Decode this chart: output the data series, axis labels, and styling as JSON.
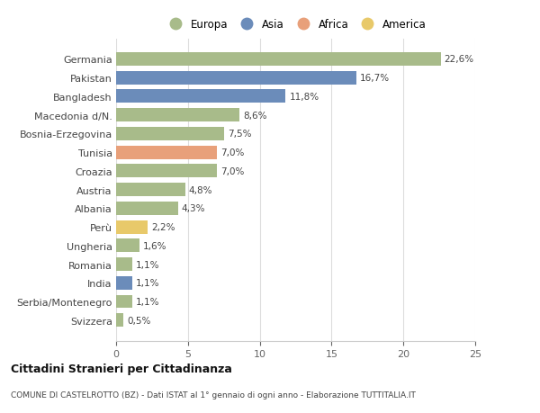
{
  "countries": [
    "Germania",
    "Pakistan",
    "Bangladesh",
    "Macedonia d/N.",
    "Bosnia-Erzegovina",
    "Tunisia",
    "Croazia",
    "Austria",
    "Albania",
    "Perù",
    "Ungheria",
    "Romania",
    "India",
    "Serbia/Montenegro",
    "Svizzera"
  ],
  "values": [
    22.6,
    16.7,
    11.8,
    8.6,
    7.5,
    7.0,
    7.0,
    4.8,
    4.3,
    2.2,
    1.6,
    1.1,
    1.1,
    1.1,
    0.5
  ],
  "labels": [
    "22,6%",
    "16,7%",
    "11,8%",
    "8,6%",
    "7,5%",
    "7,0%",
    "7,0%",
    "4,8%",
    "4,3%",
    "2,2%",
    "1,6%",
    "1,1%",
    "1,1%",
    "1,1%",
    "0,5%"
  ],
  "continents": [
    "Europa",
    "Asia",
    "Asia",
    "Europa",
    "Europa",
    "Africa",
    "Europa",
    "Europa",
    "Europa",
    "America",
    "Europa",
    "Europa",
    "Asia",
    "Europa",
    "Europa"
  ],
  "colors": {
    "Europa": "#a8bb8a",
    "Asia": "#6b8cba",
    "Africa": "#e8a07a",
    "America": "#e8c96a"
  },
  "legend_order": [
    "Europa",
    "Asia",
    "Africa",
    "America"
  ],
  "xlim": [
    0,
    25
  ],
  "xticks": [
    0,
    5,
    10,
    15,
    20,
    25
  ],
  "bg_color": "#ffffff",
  "plot_bg_color": "#ffffff",
  "title": "Cittadini Stranieri per Cittadinanza",
  "subtitle": "COMUNE DI CASTELROTTO (BZ) - Dati ISTAT al 1° gennaio di ogni anno - Elaborazione TUTTITALIA.IT",
  "bar_height": 0.72,
  "label_fontsize": 7.5,
  "ytick_fontsize": 8.0,
  "xtick_fontsize": 8.0,
  "legend_fontsize": 8.5
}
